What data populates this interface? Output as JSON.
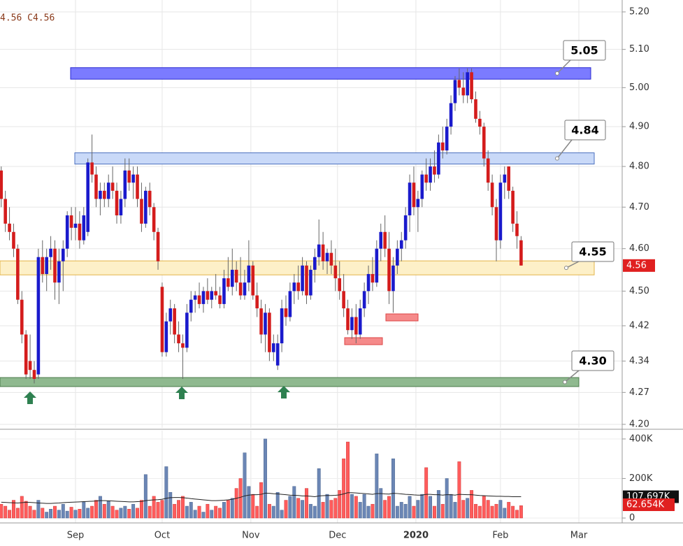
{
  "chart_data": {
    "type": "candlestick",
    "legend_text": "4.56  C4.56",
    "log_scale": true,
    "grid": true,
    "up_color": "#1a1acc",
    "down_color": "#d41c1c",
    "xlim": [
      -0.3,
      150.5
    ],
    "xticks": [
      {
        "value": 18,
        "label": "Sep"
      },
      {
        "value": 39,
        "label": "Oct"
      },
      {
        "value": 60.5,
        "label": "Nov"
      },
      {
        "value": 81.5,
        "label": "Dec"
      },
      {
        "value": 100.5,
        "label": "2020"
      },
      {
        "value": 121,
        "label": "Feb"
      },
      {
        "value": 140,
        "label": "Mar"
      }
    ],
    "ylim": [
      4.2,
      5.2
    ],
    "yticks": [
      {
        "value": 5.2,
        "label": "5.20"
      },
      {
        "value": 5.1,
        "label": "5.10"
      },
      {
        "value": 5.0,
        "label": "5.00"
      },
      {
        "value": 4.9,
        "label": "4.90"
      },
      {
        "value": 4.8,
        "label": "4.80"
      },
      {
        "value": 4.7,
        "label": "4.70"
      },
      {
        "value": 4.6,
        "label": "4.60"
      },
      {
        "value": 4.5,
        "label": "4.50"
      },
      4.42,
      4.34,
      4.27,
      {
        "value": 4.2,
        "label": "4.20"
      }
    ],
    "open": [
      4.79,
      4.72,
      4.66,
      4.64,
      4.6,
      4.48,
      4.4,
      4.34,
      4.32,
      4.31,
      4.58,
      4.54,
      4.58,
      4.6,
      4.52,
      4.57,
      4.6,
      4.68,
      4.65,
      4.66,
      4.62,
      4.64,
      4.81,
      4.78,
      4.72,
      4.74,
      4.72,
      4.76,
      4.74,
      4.68,
      4.72,
      4.79,
      4.76,
      4.78,
      4.72,
      4.66,
      4.74,
      4.7,
      4.64,
      4.51,
      4.36,
      4.43,
      4.46,
      4.4,
      4.38,
      4.37,
      4.45,
      4.48,
      4.49,
      4.47,
      4.5,
      4.48,
      4.5,
      4.49,
      4.47,
      4.53,
      4.51,
      4.55,
      4.52,
      4.49,
      4.52,
      4.56,
      4.49,
      4.46,
      4.4,
      4.45,
      4.36,
      4.33,
      4.38,
      4.46,
      4.44,
      4.5,
      4.52,
      4.5,
      4.56,
      4.49,
      4.55,
      4.58,
      4.61,
      4.57,
      4.59,
      4.56,
      4.53,
      4.5,
      4.46,
      4.41,
      4.44,
      4.4,
      4.46,
      4.5,
      4.54,
      4.52,
      4.6,
      4.64,
      4.6,
      4.5,
      4.56,
      4.6,
      4.62,
      4.68,
      4.76,
      4.7,
      4.72,
      4.78,
      4.76,
      4.8,
      4.78,
      4.86,
      4.84,
      4.9,
      4.96,
      5.02,
      5.0,
      4.98,
      5.04,
      4.97,
      4.92,
      4.9,
      4.82,
      4.76,
      4.7,
      4.62,
      4.76,
      4.8,
      4.74,
      4.66,
      4.62
    ],
    "high": [
      4.8,
      4.74,
      4.7,
      4.66,
      4.61,
      4.5,
      4.41,
      4.4,
      4.34,
      4.6,
      4.62,
      4.6,
      4.63,
      4.62,
      4.6,
      4.62,
      4.69,
      4.7,
      4.7,
      4.69,
      4.7,
      4.82,
      4.88,
      4.8,
      4.76,
      4.76,
      4.78,
      4.8,
      4.76,
      4.74,
      4.82,
      4.82,
      4.8,
      4.8,
      4.76,
      4.75,
      4.76,
      4.71,
      4.65,
      4.52,
      4.45,
      4.48,
      4.47,
      4.43,
      4.4,
      4.47,
      4.5,
      4.5,
      4.52,
      4.51,
      4.53,
      4.51,
      4.54,
      4.51,
      4.55,
      4.58,
      4.6,
      4.57,
      4.58,
      4.55,
      4.62,
      4.57,
      4.52,
      4.48,
      4.47,
      4.46,
      4.4,
      4.4,
      4.48,
      4.49,
      4.52,
      4.54,
      4.56,
      4.58,
      4.57,
      4.56,
      4.6,
      4.67,
      4.64,
      4.6,
      4.62,
      4.6,
      4.57,
      4.54,
      4.48,
      4.46,
      4.47,
      4.48,
      4.52,
      4.56,
      4.58,
      4.62,
      4.66,
      4.68,
      4.64,
      4.58,
      4.62,
      4.64,
      4.7,
      4.78,
      4.8,
      4.74,
      4.79,
      4.82,
      4.82,
      4.84,
      4.88,
      4.9,
      4.92,
      4.98,
      5.03,
      5.05,
      5.04,
      5.05,
      5.05,
      4.99,
      4.94,
      4.91,
      4.84,
      4.78,
      4.72,
      4.78,
      4.8,
      4.8,
      4.75,
      4.69,
      4.63
    ],
    "low": [
      4.7,
      4.64,
      4.62,
      4.58,
      4.47,
      4.38,
      4.3,
      4.3,
      4.29,
      4.3,
      4.52,
      4.5,
      4.55,
      4.48,
      4.47,
      4.5,
      4.58,
      4.62,
      4.62,
      4.6,
      4.61,
      4.63,
      4.76,
      4.7,
      4.68,
      4.7,
      4.7,
      4.72,
      4.66,
      4.66,
      4.7,
      4.74,
      4.72,
      4.7,
      4.64,
      4.65,
      4.68,
      4.62,
      4.55,
      4.35,
      4.35,
      4.4,
      4.38,
      4.36,
      4.3,
      4.36,
      4.43,
      4.45,
      4.46,
      4.45,
      4.47,
      4.46,
      4.48,
      4.46,
      4.46,
      4.5,
      4.49,
      4.5,
      4.48,
      4.48,
      4.5,
      4.48,
      4.44,
      4.38,
      4.36,
      4.34,
      4.34,
      4.32,
      4.36,
      4.42,
      4.43,
      4.47,
      4.48,
      4.49,
      4.47,
      4.48,
      4.52,
      4.56,
      4.55,
      4.54,
      4.54,
      4.5,
      4.48,
      4.44,
      4.4,
      4.39,
      4.38,
      4.39,
      4.44,
      4.47,
      4.5,
      4.51,
      4.57,
      4.58,
      4.47,
      4.45,
      4.54,
      4.57,
      4.6,
      4.64,
      4.68,
      4.64,
      4.7,
      4.74,
      4.74,
      4.76,
      4.77,
      4.82,
      4.83,
      4.88,
      4.94,
      4.98,
      4.96,
      4.96,
      4.96,
      4.91,
      4.88,
      4.8,
      4.74,
      4.68,
      4.57,
      4.6,
      4.72,
      4.72,
      4.64,
      4.6,
      4.56
    ],
    "close": [
      4.72,
      4.66,
      4.64,
      4.6,
      4.48,
      4.4,
      4.31,
      4.32,
      4.3,
      4.58,
      4.54,
      4.58,
      4.6,
      4.52,
      4.57,
      4.6,
      4.68,
      4.65,
      4.66,
      4.62,
      4.68,
      4.81,
      4.78,
      4.72,
      4.74,
      4.72,
      4.76,
      4.74,
      4.68,
      4.72,
      4.79,
      4.76,
      4.78,
      4.72,
      4.66,
      4.74,
      4.7,
      4.64,
      4.57,
      4.36,
      4.43,
      4.46,
      4.4,
      4.38,
      4.37,
      4.45,
      4.48,
      4.49,
      4.47,
      4.5,
      4.48,
      4.5,
      4.49,
      4.47,
      4.53,
      4.51,
      4.55,
      4.52,
      4.49,
      4.52,
      4.56,
      4.49,
      4.46,
      4.4,
      4.45,
      4.36,
      4.38,
      4.38,
      4.46,
      4.44,
      4.5,
      4.52,
      4.5,
      4.56,
      4.49,
      4.55,
      4.58,
      4.61,
      4.57,
      4.59,
      4.56,
      4.53,
      4.5,
      4.46,
      4.41,
      4.44,
      4.4,
      4.46,
      4.5,
      4.54,
      4.52,
      4.6,
      4.64,
      4.6,
      4.5,
      4.56,
      4.6,
      4.62,
      4.68,
      4.76,
      4.7,
      4.72,
      4.78,
      4.76,
      4.8,
      4.78,
      4.86,
      4.84,
      4.9,
      4.96,
      5.02,
      5.0,
      4.98,
      5.04,
      4.97,
      4.92,
      4.9,
      4.82,
      4.76,
      4.7,
      4.62,
      4.76,
      4.78,
      4.74,
      4.66,
      4.63,
      4.56
    ],
    "last_price": {
      "value": 4.56,
      "label": "4.56"
    },
    "zones": [
      {
        "label": "5.05",
        "range": [
          5.022,
          5.052
        ],
        "fill": "#7b7bff",
        "stroke": "#2a2ad0"
      },
      {
        "label": "4.84",
        "range": [
          4.806,
          4.834
        ],
        "fill": "#c9d9f8",
        "stroke": "#4a6fbf"
      },
      {
        "label": "4.55",
        "range": [
          4.538,
          4.571
        ],
        "fill": "#fdf0c8",
        "stroke": "#e3b448"
      },
      {
        "label": "4.30",
        "range": [
          4.283,
          4.303
        ],
        "fill": "#8fb98f",
        "stroke": "#4a7a4a"
      }
    ],
    "volume": {
      "ylim": [
        0,
        435000
      ],
      "yticks": [
        {
          "value": 400000,
          "label": "400K"
        },
        {
          "value": 200000,
          "label": "200K"
        },
        0
      ],
      "up_color": "#6b86b5",
      "down_color": "#ff5c5c",
      "values": [
        70000,
        60000,
        40000,
        90000,
        50000,
        110000,
        85000,
        60000,
        40000,
        90000,
        50000,
        30000,
        45000,
        60000,
        40000,
        70000,
        35000,
        55000,
        40000,
        45000,
        80000,
        50000,
        60000,
        90000,
        110000,
        70000,
        85000,
        60000,
        40000,
        50000,
        60000,
        45000,
        70000,
        50000,
        90000,
        220000,
        60000,
        110000,
        80000,
        90000,
        260000,
        130000,
        70000,
        90000,
        110000,
        60000,
        80000,
        40000,
        60000,
        30000,
        70000,
        40000,
        60000,
        50000,
        80000,
        90000,
        100000,
        150000,
        200000,
        330000,
        160000,
        120000,
        60000,
        180000,
        400000,
        70000,
        60000,
        130000,
        40000,
        90000,
        110000,
        160000,
        100000,
        90000,
        150000,
        70000,
        60000,
        250000,
        80000,
        120000,
        90000,
        100000,
        140000,
        300000,
        385000,
        120000,
        110000,
        80000,
        120000,
        60000,
        70000,
        325000,
        150000,
        90000,
        110000,
        300000,
        60000,
        80000,
        70000,
        110000,
        60000,
        90000,
        120000,
        255000,
        110000,
        60000,
        140000,
        70000,
        200000,
        120000,
        80000,
        285000,
        90000,
        100000,
        140000,
        70000,
        60000,
        110000,
        90000,
        60000,
        70000,
        90000,
        50000,
        80000,
        60000,
        40000,
        62654
      ],
      "ma": [
        80000,
        79000,
        78000,
        77000,
        76000,
        78000,
        80000,
        79000,
        78000,
        76000,
        75000,
        74000,
        74000,
        75000,
        76000,
        78000,
        79000,
        80000,
        81000,
        82000,
        83000,
        84000,
        85000,
        86000,
        88000,
        88000,
        87000,
        86000,
        85000,
        84000,
        83000,
        82000,
        82000,
        83000,
        84000,
        88000,
        90000,
        92000,
        93000,
        95000,
        100000,
        103000,
        104000,
        104000,
        103000,
        101000,
        98000,
        96000,
        94000,
        92000,
        90000,
        88000,
        88000,
        89000,
        90000,
        92000,
        95000,
        100000,
        105000,
        112000,
        116000,
        118000,
        118000,
        120000,
        126000,
        125000,
        123000,
        122000,
        120000,
        118000,
        116000,
        115000,
        114000,
        112000,
        112000,
        110000,
        108000,
        112000,
        113000,
        114000,
        114000,
        115000,
        117000,
        122000,
        128000,
        128000,
        127000,
        125000,
        124000,
        122000,
        120000,
        124000,
        124000,
        122000,
        121000,
        125000,
        124000,
        122000,
        120000,
        119000,
        117000,
        116000,
        116000,
        120000,
        120000,
        118000,
        118000,
        116000,
        118000,
        118000,
        116000,
        120000,
        119000,
        118000,
        118000,
        116000,
        114000,
        113000,
        112000,
        111000,
        110000,
        110000,
        109000,
        109000,
        108000,
        108000,
        107697
      ],
      "ma_color": "#222222",
      "last_ma": {
        "value": 107697,
        "label": "107.697K"
      },
      "last_volume": {
        "value": 62654,
        "label": "62.654K"
      }
    }
  }
}
